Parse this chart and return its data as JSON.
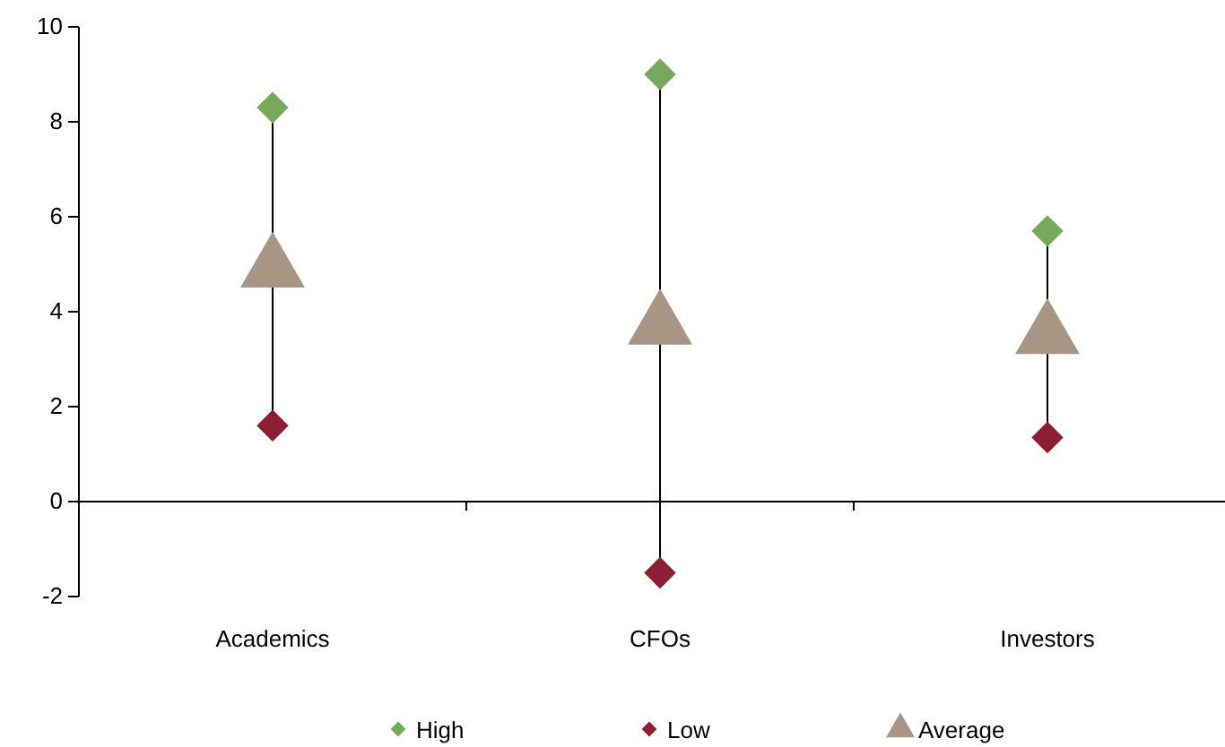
{
  "chart_data": {
    "type": "scatter",
    "categories": [
      "Academics",
      "CFOs",
      "Investors"
    ],
    "series": [
      {
        "name": "High",
        "color": "#77a95c",
        "marker": "diamond",
        "values": [
          8.3,
          9.0,
          5.7
        ]
      },
      {
        "name": "Low",
        "color": "#8c1f32",
        "marker": "diamond",
        "values": [
          1.6,
          -1.5,
          1.35
        ]
      },
      {
        "name": "Average",
        "color": "#a89584",
        "marker": "triangle",
        "values": [
          4.9,
          3.7,
          3.5
        ]
      }
    ],
    "ylim": [
      -2,
      10
    ],
    "yticks": [
      -2,
      0,
      2,
      4,
      6,
      8,
      10
    ],
    "legend": "bottom"
  }
}
